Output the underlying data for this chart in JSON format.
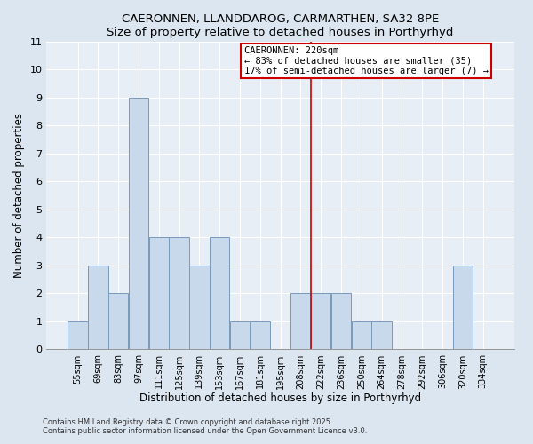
{
  "title": "CAERONNEN, LLANDDAROG, CARMARTHEN, SA32 8PE",
  "subtitle": "Size of property relative to detached houses in Porthyrhyd",
  "xlabel": "Distribution of detached houses by size in Porthyrhyd",
  "ylabel": "Number of detached properties",
  "bin_labels": [
    "55sqm",
    "69sqm",
    "83sqm",
    "97sqm",
    "111sqm",
    "125sqm",
    "139sqm",
    "153sqm",
    "167sqm",
    "181sqm",
    "195sqm",
    "208sqm",
    "222sqm",
    "236sqm",
    "250sqm",
    "264sqm",
    "278sqm",
    "292sqm",
    "306sqm",
    "320sqm",
    "334sqm"
  ],
  "bar_values": [
    1,
    3,
    2,
    9,
    4,
    4,
    3,
    4,
    1,
    1,
    0,
    2,
    2,
    2,
    1,
    1,
    0,
    0,
    0,
    3,
    0
  ],
  "bar_color": "#c9d9ec",
  "bar_edge_color": "#7799bb",
  "ylim": [
    0,
    11
  ],
  "yticks": [
    0,
    1,
    2,
    3,
    4,
    5,
    6,
    7,
    8,
    9,
    10,
    11
  ],
  "vline_color": "#cc0000",
  "annotation_title": "CAERONNEN: 220sqm",
  "annotation_line1": "← 83% of detached houses are smaller (35)",
  "annotation_line2": "17% of semi-detached houses are larger (7) →",
  "annotation_box_color": "#cc0000",
  "footer_line1": "Contains HM Land Registry data © Crown copyright and database right 2025.",
  "footer_line2": "Contains public sector information licensed under the Open Government Licence v3.0.",
  "bg_color": "#dce6f0",
  "plot_bg_color": "#e8eef5"
}
